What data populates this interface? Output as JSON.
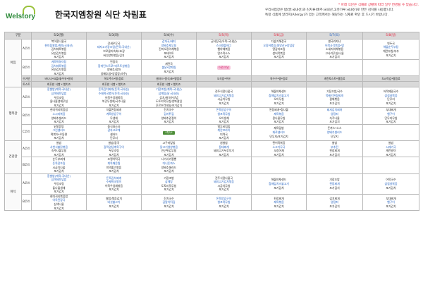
{
  "brand": {
    "logo_text": "Welstory"
  },
  "title": "한국지엠창원 식단 차림표",
  "notice": {
    "line1": "* 아래 식단은 식재료 상황에 따라 일부 변경될 수 있습니다.",
    "line2": "우리사업장은 밥(쌀:국내산)과 김치류(배추:국내산,고춧가루:국내산)로 만든 김치를 사용합니다.",
    "line3": "특정 식품에 알러지(Allergy)가 있는 고객께서는 해당하는 식재료 확인 후 드시기 바랍니다."
  },
  "table": {
    "col_header": [
      "구분",
      "",
      "5/2(월)",
      "5/3(화)",
      "5/4(수)",
      "5/5(목)",
      "5/6(금)",
      "5/7(토)",
      "5/8(일)"
    ],
    "rows": {
      "breakfast_label": "아침",
      "zone1": "행복관",
      "zone2": "건강관",
      "lunch1_label": "점심",
      "lunch2_label": "저녁",
      "dinner_label": "야식",
      "course_a": "A코스",
      "course_b": "B코스",
      "course_c": "C코스",
      "shared_label": "수거반",
      "toast_label": "토스트",
      "bar_shared": [
        "바나나*요플레/우유*쌀국",
        "옥도주스*빵/음료",
        "샐러드*봉식/초*빵음료",
        "오곡밥*우유",
        "옥수수*빵*음료",
        "계란토스트*빵음료",
        "도시락김*빵음료"
      ],
      "bar_toast": [
        "최후한 식빵 * 햄치즈",
        "최후한 식빵 * 햄치즈",
        "최후한 식빵 * 햄치즈",
        "",
        "",
        "",
        ""
      ]
    },
    "breakfast_a": [
      [
        "북어콩나물국",
        "현미찹쌀밥/계육(국내산)",
        "김치제육볶음",
        "유빈김치볶음",
        "포기김치"
      ],
      [
        "건새우무국",
        "돼지고기장조림(돈육:국내산)",
        "브로콜리숙회*초장",
        "버섯양파볶음/김치"
      ],
      [
        "감자국/돼지",
        "양배추채무침",
        "진미오징어채볶음",
        "포테이토",
        "포기김치"
      ],
      [
        "균사탕국(우육:국내산)",
        "스크램블에그",
        "햄야채볶음",
        "탕수육소스",
        "포기김치"
      ],
      [
        "다슬기해장국",
        "오징어볶음(원양산)*양념장",
        "알감자조림",
        "쌈어묵볶음",
        "포기김치"
      ],
      [
        "쌀국라자냐",
        "어묵사각볶음*탕",
        "소세지야채볶음",
        "고사리무침/나물",
        "포기김치"
      ],
      [
        "연두국",
        "해물순두부탕",
        "계란부침/부추",
        "포기김치"
      ]
    ],
    "breakfast_b": [
      [
        "계육떡볶이탕",
        "김치제육볶음",
        "유빈김치볶음",
        "포기김치"
      ],
      [
        "된장국",
        "함게된스트로*타르트살볶음",
        "양배추/양파",
        "양배추쌈*양념장(숙주)"
      ],
      [
        "계란국",
        "불닭*양파찜",
        "포기김치"
      ],
      [
        "어린이날"
      ],
      [
        "",
        "",
        ""
      ],
      [
        "",
        "",
        ""
      ],
      [
        "",
        "",
        ""
      ]
    ],
    "lunch_a": [
      [
        "함쌀밥(계육:국내산)",
        "삼색제육덮밥",
        "우엉조림",
        "돌나물생채무침",
        "포기김치"
      ],
      [
        "돈육김치찌개(돈육:국내산)",
        "수제떡국볶이(돈육:국내산)",
        "어묵우엉채볶음",
        "쑥갓무생채/국수나물",
        "포기김치"
      ],
      [
        "기장조밥(계육:국내산)",
        "삼계탕(닭:국내산)",
        "김치/쌀국수양념",
        "도토리묵무침/양파절임",
        "후르츠칵테일/포기김치"
      ],
      [
        "전주식콩나물국",
        "돼지고기김치볶음",
        "시금치무침",
        "포기김치"
      ],
      [
        "해물야채샌드",
        "참깨잎치즈불고기",
        "오이무침",
        "포기김치"
      ],
      [
        "기장조밥/국수",
        "뚝배기된장찌개",
        "잡채볶음",
        "포기김치"
      ],
      [
        "어묵메밀국수",
        "삼겹살볶음",
        "단무지",
        "포기김치"
      ]
    ],
    "lunch_b": [
      [
        "현미귀리볶음밥",
        "소시지볶음",
        "양배추샐러드",
        "포기김치"
      ],
      [
        "차돌된장찌개",
        "계육양념구이",
        "무생채",
        "포기김치"
      ],
      [
        "잔치국수",
        "감자튀김",
        "양배추겉절이",
        "포기김치"
      ],
      [
        "돈육양념구이",
        "청포묵무침",
        "오이생채",
        "포기김치"
      ],
      [
        "된장찌개*참나물",
        "제육볶음",
        "콩나물무침",
        "포기김치"
      ],
      [
        "돼지김치찌개",
        "양장피",
        "숙주나물",
        "포기김치"
      ],
      [
        "부대찌개",
        "햄구이",
        "단무지무침",
        "포기김치"
      ]
    ],
    "lunch_c": [
      [
        "닭볶음탕",
        "그린샐러드",
        "떡볶이*우동면",
        "포기김치"
      ],
      [
        "중식파스타",
        "감자고로케",
        "샐러드",
        "단무지"
      ],
      [
        "*특식*"
      ],
      [
        "열무비빔밥",
        "계란프라이",
        "미역국",
        "포기김치"
      ],
      [
        "제육덮밥",
        "재료샐러드",
        "단무지/포기김치"
      ],
      [
        "돈까스*소스",
        "양배추샐러드",
        "단무지"
      ],
      [
        "",
        "",
        ""
      ]
    ],
    "dinner_a": [
      [
        "쌀밥",
        "사천식불닭볶음",
        "숙주나물무침",
        "포기김치"
      ],
      [
        "쌀밥/잡곡",
        "갈릭양념계육구이",
        "두부조림",
        "포기김치"
      ],
      [
        "고구마덮밥",
        "닭고기영양볶음",
        "연근튀김무침",
        "포기김치"
      ],
      [
        "흰쌀밥",
        "동태찌개",
        "돼지고기두루치기",
        "포기김치"
      ],
      [
        "찐어묵볶음",
        "소고기무국",
        "오징어채",
        "포기김치"
      ],
      [
        "쌀밥",
        "부추전",
        "된장찌개",
        "포기김치"
      ],
      [
        "쌀밥",
        "시래기국",
        "계란말이",
        "포기김치"
      ]
    ],
    "dinner_b": [
      [
        "순두부찌개",
        "돈육장조림",
        "시금치나물",
        "포기김치"
      ],
      [
        "조랭이떡국",
        "계육매운찜",
        "미역줄기볶음",
        "포기김치"
      ],
      [
        "나가사키짬뽕",
        "미니돈까스",
        "양배추샐러드",
        "포기김치"
      ],
      [
        "",
        "",
        ""
      ],
      [
        "",
        "",
        ""
      ],
      [
        "",
        "",
        ""
      ],
      [
        "",
        "",
        ""
      ]
    ],
    "late_a": [
      [
        "함쌀밥(계육:국내산)",
        "삼색제육덮밥",
        "우엉조림",
        "돌나물생채",
        "포기김치"
      ],
      [
        "돈육김치찌개",
        "수제떡국볶이",
        "어묵우엉채볶음",
        "포기김치"
      ],
      [
        "기장조밥",
        "삼계탕",
        "도토리묵무침",
        "포기김치"
      ],
      [
        "전주식콩나물국",
        "돼지고기김치볶음",
        "시금치무침",
        "포기김치"
      ],
      [
        "해물야채샌드",
        "참깨잎치즈불고기",
        "포기김치"
      ],
      [
        "기장조밥",
        "된장찌개",
        "포기김치"
      ],
      [
        "어묵국수",
        "삼겹살볶음",
        "포기김치"
      ]
    ],
    "late_b": [
      [
        "현미귀리볶음밥",
        "아욱된장국",
        "삼색나물",
        "포기김치"
      ],
      [
        "쌀밥/볶음김치",
        "버섯불고기",
        "포기김치"
      ],
      [
        "잔치국수",
        "김말이튀김",
        "포기김치"
      ],
      [
        "돈육양념구이",
        "청포묵무침",
        "포기김치"
      ],
      [
        "된장찌개",
        "제육볶음",
        "포기김치"
      ],
      [
        "김치찌개",
        "양장피",
        "포기김치"
      ],
      [
        "부대찌개",
        "햄구이",
        "포기김치"
      ]
    ],
    "special": {
      "children_day": "어린이날",
      "special_meal": "*특식*",
      "hot": "HOT"
    }
  }
}
